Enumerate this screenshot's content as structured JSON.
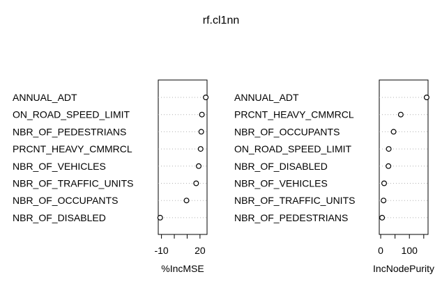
{
  "chart_data": {
    "type": "scatter",
    "title": "rf.cl1nn",
    "panels": [
      {
        "xlabel": "%IncMSE",
        "xlim": [
          -12.5,
          25.5
        ],
        "xticks": [
          -10,
          20
        ],
        "tick_marks": [
          -10,
          0,
          10,
          20
        ],
        "variables": [
          "ANNUAL_ADT",
          "ON_ROAD_SPEED_LIMIT",
          "NBR_OF_PEDESTRIANS",
          "PRCNT_HEAVY_CMMRCL",
          "NBR_OF_VEHICLES",
          "NBR_OF_TRAFFIC_UNITS",
          "NBR_OF_OCCUPANTS",
          "NBR_OF_DISABLED"
        ],
        "values": [
          24.5,
          21.5,
          21,
          20.5,
          19,
          17,
          9.5,
          -11
        ]
      },
      {
        "xlabel": "IncNodePurity",
        "xlim": [
          -5,
          165
        ],
        "xticks": [
          0,
          100
        ],
        "tick_marks": [
          0,
          50,
          100,
          150
        ],
        "variables": [
          "ANNUAL_ADT",
          "PRCNT_HEAVY_CMMRCL",
          "NBR_OF_OCCUPANTS",
          "ON_ROAD_SPEED_LIMIT",
          "NBR_OF_DISABLED",
          "NBR_OF_VEHICLES",
          "NBR_OF_TRAFFIC_UNITS",
          "NBR_OF_PEDESTRIANS"
        ],
        "values": [
          160,
          70,
          45,
          28,
          27,
          12,
          10,
          5
        ]
      }
    ]
  }
}
